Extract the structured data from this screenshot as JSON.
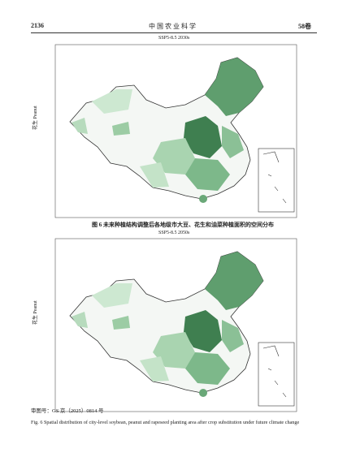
{
  "header": {
    "page": "2136",
    "journal": "中 国 农 业 科 学",
    "volume": "58卷"
  },
  "panels": [
    {
      "title": "SSP5-8.5 2030s",
      "ylabel": "花生 Peanut"
    },
    {
      "title": "SSP5-8.5 2050s",
      "ylabel": "花生 Peanut"
    }
  ],
  "caption_cn": "图 6  未来种植结构调整后各地级市大豆、花生和油菜种植面积的空间分布",
  "approval": "审图号：GS 京（2025）0814 号",
  "caption_en": "Fig. 6  Spatial distribution of city-level soybean, peanut and rapeseed planting area after crop substitution under future climate change"
}
